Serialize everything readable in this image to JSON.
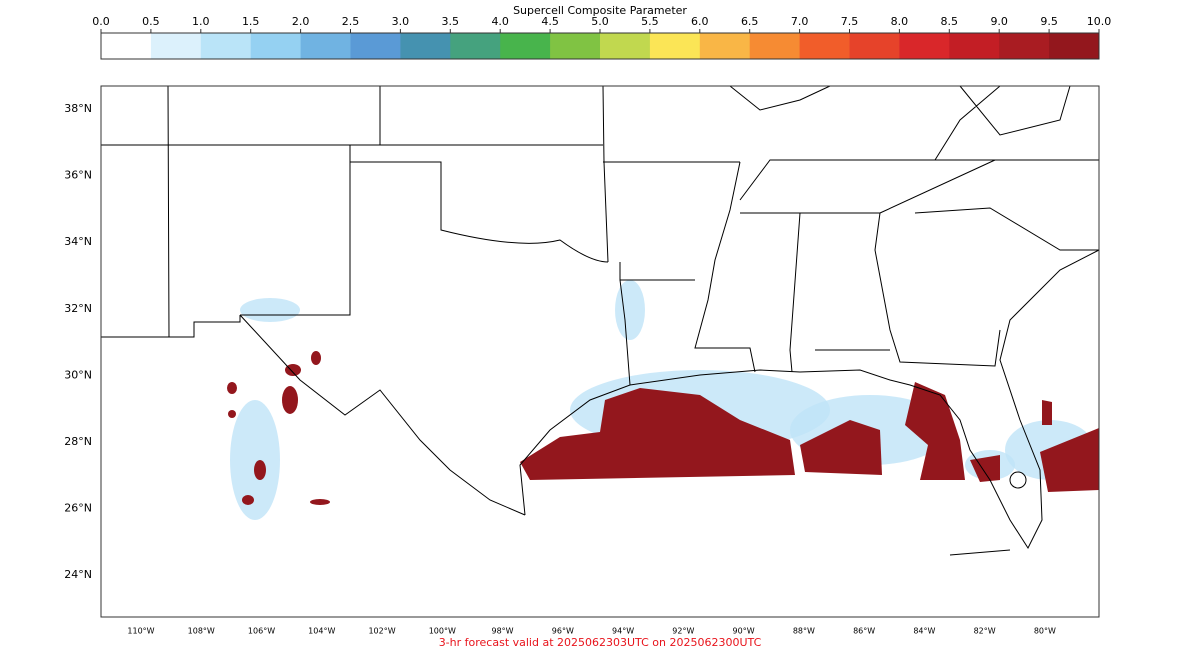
{
  "colorbar": {
    "title": "Supercell Composite Parameter",
    "range": [
      0,
      10
    ],
    "ticks": [
      {
        "value": 0,
        "label": "0.0"
      },
      {
        "value": 0.5,
        "label": "0.5"
      },
      {
        "value": 1,
        "label": "1.0"
      },
      {
        "value": 1.5,
        "label": "1.5"
      },
      {
        "value": 2,
        "label": "2.0"
      },
      {
        "value": 2.5,
        "label": "2.5"
      },
      {
        "value": 3,
        "label": "3.0"
      },
      {
        "value": 3.5,
        "label": "3.5"
      },
      {
        "value": 4,
        "label": "4.0"
      },
      {
        "value": 4.5,
        "label": "4.5"
      },
      {
        "value": 5,
        "label": "5.0"
      },
      {
        "value": 5.5,
        "label": "5.5"
      },
      {
        "value": 6,
        "label": "6.0"
      },
      {
        "value": 6.5,
        "label": "6.5"
      },
      {
        "value": 7,
        "label": "7.0"
      },
      {
        "value": 7.5,
        "label": "7.5"
      },
      {
        "value": 8,
        "label": "8.0"
      },
      {
        "value": 8.5,
        "label": "8.5"
      },
      {
        "value": 9,
        "label": "9.0"
      },
      {
        "value": 9.5,
        "label": "9.5"
      },
      {
        "value": 10,
        "label": "10.0"
      }
    ],
    "colors": [
      "#ffffff",
      "#dcf1fc",
      "#bae4f8",
      "#95d1f2",
      "#70b3e2",
      "#5a9ad6",
      "#4592b0",
      "#45a27e",
      "#48b44c",
      "#80c343",
      "#c1d84f",
      "#fbe556",
      "#f9b646",
      "#f68b33",
      "#f15d2a",
      "#e6432a",
      "#d9272a",
      "#c31e25",
      "#a91c22",
      "#93171d"
    ]
  },
  "map": {
    "lat_ticks": [
      {
        "value": 38,
        "label": "38°N"
      },
      {
        "value": 36,
        "label": "36°N"
      },
      {
        "value": 34,
        "label": "34°N"
      },
      {
        "value": 32,
        "label": "32°N"
      },
      {
        "value": 30,
        "label": "30°N"
      },
      {
        "value": 28,
        "label": "28°N"
      },
      {
        "value": 26,
        "label": "26°N"
      },
      {
        "value": 24,
        "label": "24°N"
      }
    ],
    "lon_ticks": [
      {
        "value": -110,
        "label": "110°W"
      },
      {
        "value": -108,
        "label": "108°W"
      },
      {
        "value": -106,
        "label": "106°W"
      },
      {
        "value": -104,
        "label": "104°W"
      },
      {
        "value": -102,
        "label": "102°W"
      },
      {
        "value": -100,
        "label": "100°W"
      },
      {
        "value": -98,
        "label": "98°W"
      },
      {
        "value": -96,
        "label": "96°W"
      },
      {
        "value": -94,
        "label": "94°W"
      },
      {
        "value": -92,
        "label": "92°W"
      },
      {
        "value": -90,
        "label": "90°W"
      },
      {
        "value": -88,
        "label": "88°W"
      },
      {
        "value": -86,
        "label": "86°W"
      },
      {
        "value": -84,
        "label": "84°W"
      },
      {
        "value": -82,
        "label": "82°W"
      },
      {
        "value": -80,
        "label": "80°W"
      }
    ],
    "footer": "3-hr forecast valid at 2025062303UTC on 2025062300UTC"
  }
}
